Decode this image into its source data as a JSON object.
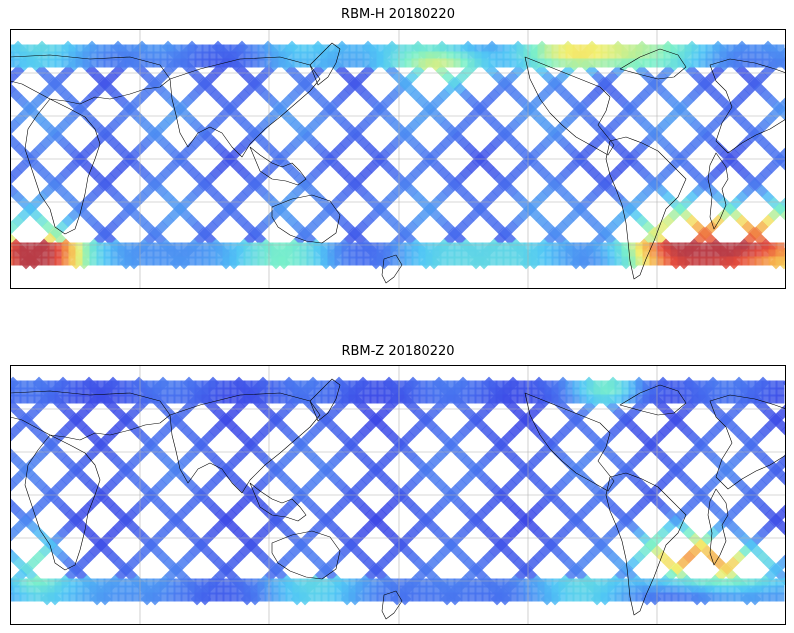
{
  "chart_data": [
    {
      "type": "heatmap",
      "title": "RBM-H 20180220",
      "colormap": "jet",
      "colormap_stops": [
        "#3b46e6",
        "#4a7cf0",
        "#50c6f5",
        "#7af0c8",
        "#f2ee6e",
        "#f6a848",
        "#e64b3a",
        "#b83c46"
      ],
      "grid": true,
      "swath_pattern": "criss-cross satellite tracks over land and ocean",
      "hot_regions": [
        {
          "region": "South Africa / south-west Indian Ocean",
          "level": "high"
        },
        {
          "region": "Southern South America / South Atlantic",
          "level": "very high"
        },
        {
          "region": "North Atlantic / North America high latitudes",
          "level": "moderate"
        },
        {
          "region": "Southern Ocean band",
          "level": "moderate"
        }
      ]
    },
    {
      "type": "heatmap",
      "title": "RBM-Z 20180220",
      "colormap": "jet",
      "colormap_stops": [
        "#3b46e6",
        "#4a7cf0",
        "#50c6f5",
        "#7af0c8",
        "#f2ee6e",
        "#f6a848",
        "#e64b3a",
        "#b83c46"
      ],
      "grid": true,
      "swath_pattern": "criss-cross satellite tracks over land and ocean",
      "hot_regions": [
        {
          "region": "Southern South America / South Atlantic",
          "level": "moderate"
        },
        {
          "region": "South Africa",
          "level": "low-moderate"
        },
        {
          "region": "North Atlantic",
          "level": "low-moderate"
        }
      ]
    }
  ]
}
